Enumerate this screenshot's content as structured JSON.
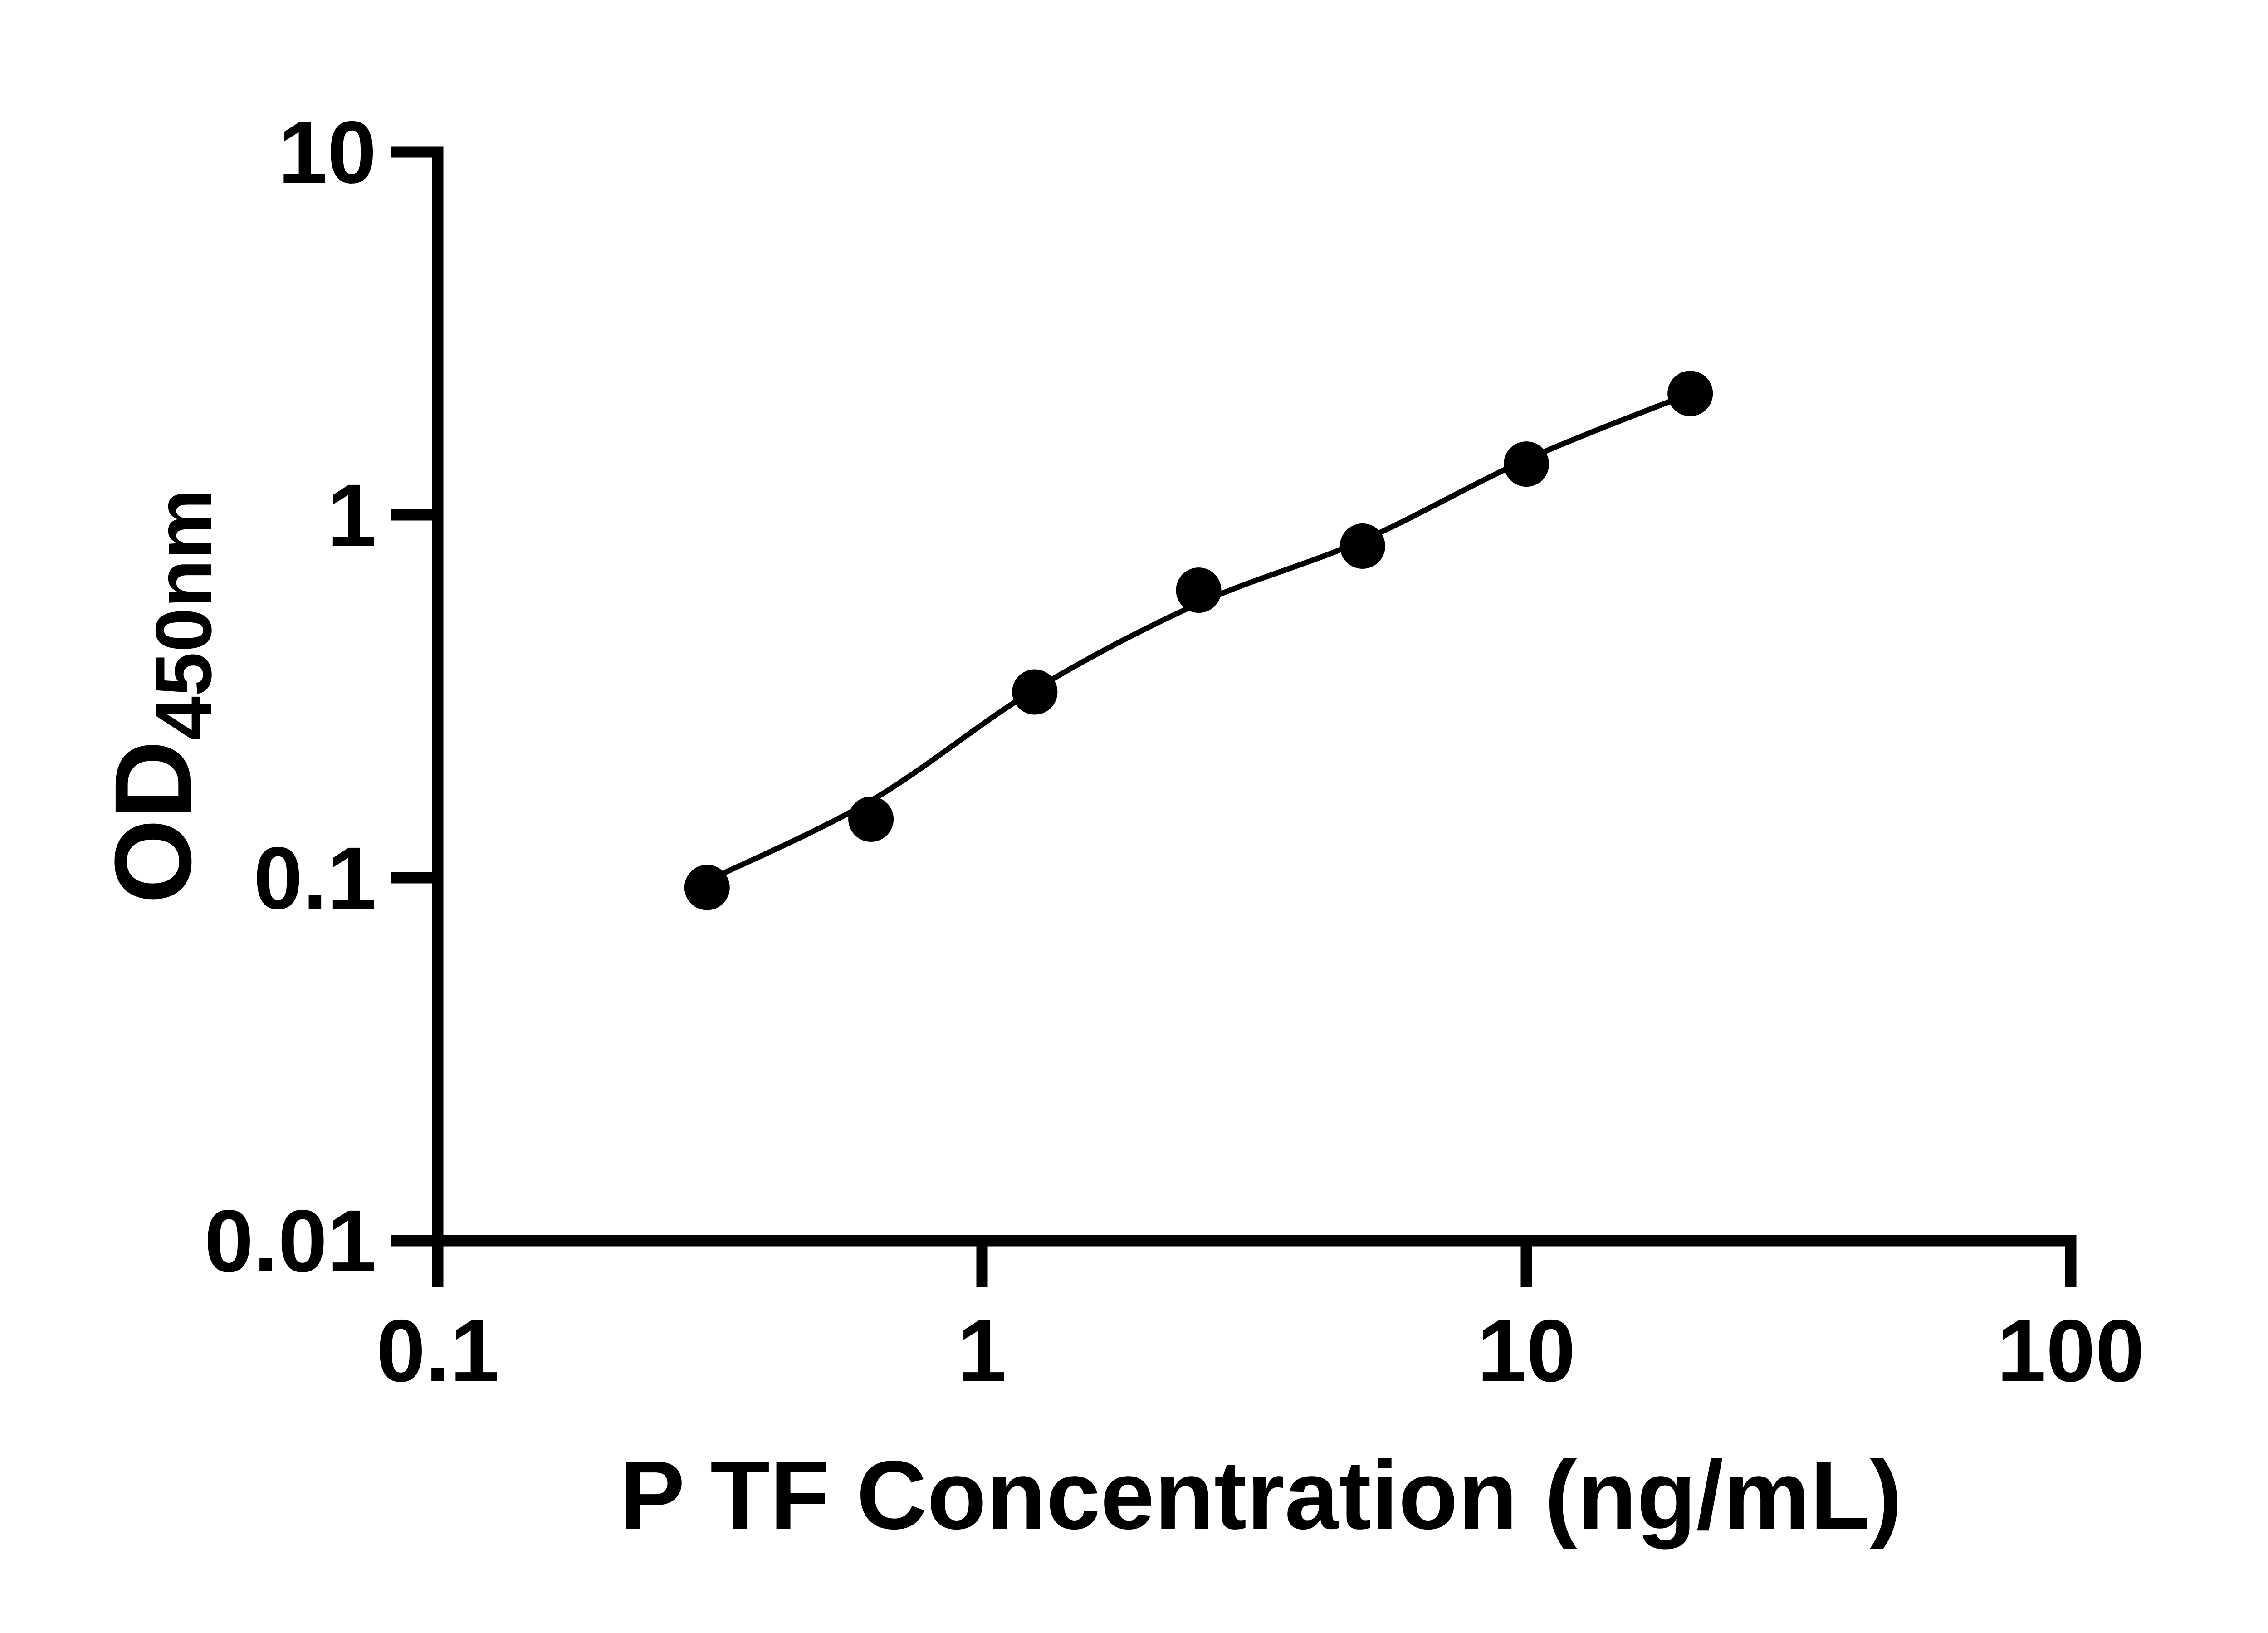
{
  "figure": {
    "background_color": "#ffffff",
    "ink_color": "#000000"
  },
  "chart_data": {
    "type": "scatter",
    "title": "",
    "xlabel": "P TF Concentration (ng/mL)",
    "ylabel": "OD450nm",
    "ylabel_main": "OD",
    "ylabel_sub": "450nm",
    "x_scale": "log",
    "y_scale": "log",
    "xlim": [
      0.1,
      100
    ],
    "ylim": [
      0.01,
      10
    ],
    "x_ticks": [
      0.1,
      1,
      10,
      100
    ],
    "x_tick_labels": [
      "0.1",
      "1",
      "10",
      "100"
    ],
    "y_ticks": [
      10,
      1,
      0.1,
      0.01
    ],
    "y_tick_labels": [
      "10",
      "1",
      "0.1",
      "0.01"
    ],
    "grid": false,
    "legend": "none",
    "series": [
      {
        "name": "standard-samples",
        "marker": "filled-circle",
        "color": "#000000",
        "x": [
          0.3125,
          0.625,
          1.25,
          2.5,
          5,
          10,
          20
        ],
        "y": [
          0.094,
          0.145,
          0.325,
          0.62,
          0.82,
          1.38,
          2.16
        ]
      }
    ],
    "fit_curve": {
      "name": "fitted-standard-curve",
      "color": "#000000",
      "x": [
        0.3125,
        0.625,
        1.25,
        2.5,
        5,
        10,
        20
      ],
      "y": [
        0.098,
        0.163,
        0.33,
        0.57,
        0.85,
        1.42,
        2.16
      ]
    }
  }
}
